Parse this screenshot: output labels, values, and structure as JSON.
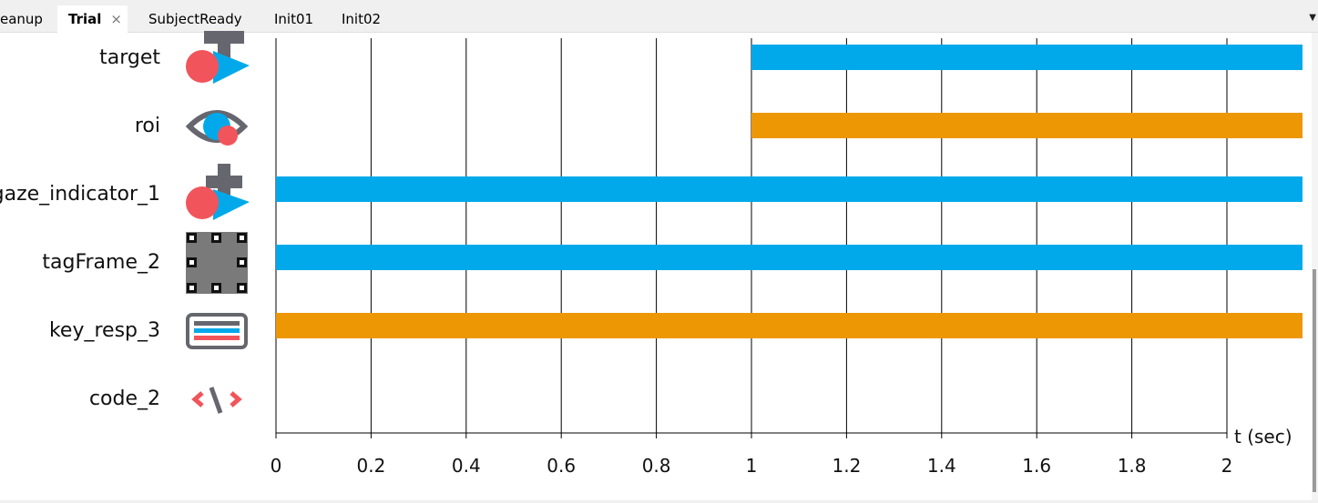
{
  "tabs": [
    {
      "label": "eanup",
      "active": false
    },
    {
      "label": "Trial",
      "active": true
    },
    {
      "label": "SubjectReady",
      "active": false
    },
    {
      "label": "Init01",
      "active": false
    },
    {
      "label": "Init02",
      "active": false
    }
  ],
  "tab_close_glyph": "×",
  "tab_menu_glyph": "▼",
  "timeline": {
    "axis_label": "t (sec)",
    "ticks": [
      "0",
      "0.2",
      "0.4",
      "0.6",
      "0.8",
      "1",
      "1.2",
      "1.4",
      "1.6",
      "1.8",
      "2"
    ],
    "components": [
      {
        "name": "target",
        "icon": "target-icon",
        "start": 1.0,
        "color": "#02A9EA"
      },
      {
        "name": "roi",
        "icon": "eye-roi-icon",
        "start": 1.0,
        "color": "#EC9703"
      },
      {
        "name": "gaze_indicator_1",
        "icon": "gaze-indicator-icon",
        "start": 0.0,
        "color": "#02A9EA"
      },
      {
        "name": "tagFrame_2",
        "icon": "apriltag-frame-icon",
        "start": 0.0,
        "color": "#02A9EA"
      },
      {
        "name": "key_resp_3",
        "icon": "keyboard-icon",
        "start": 0.0,
        "color": "#EC9703"
      },
      {
        "name": "code_2",
        "icon": "code-icon",
        "start": null,
        "color": null
      }
    ],
    "colors": {
      "visual": "#02A9EA",
      "response": "#EC9703",
      "icon_red": "#F2545B",
      "icon_grey": "#66666E",
      "icon_blue": "#02A9EA"
    }
  }
}
